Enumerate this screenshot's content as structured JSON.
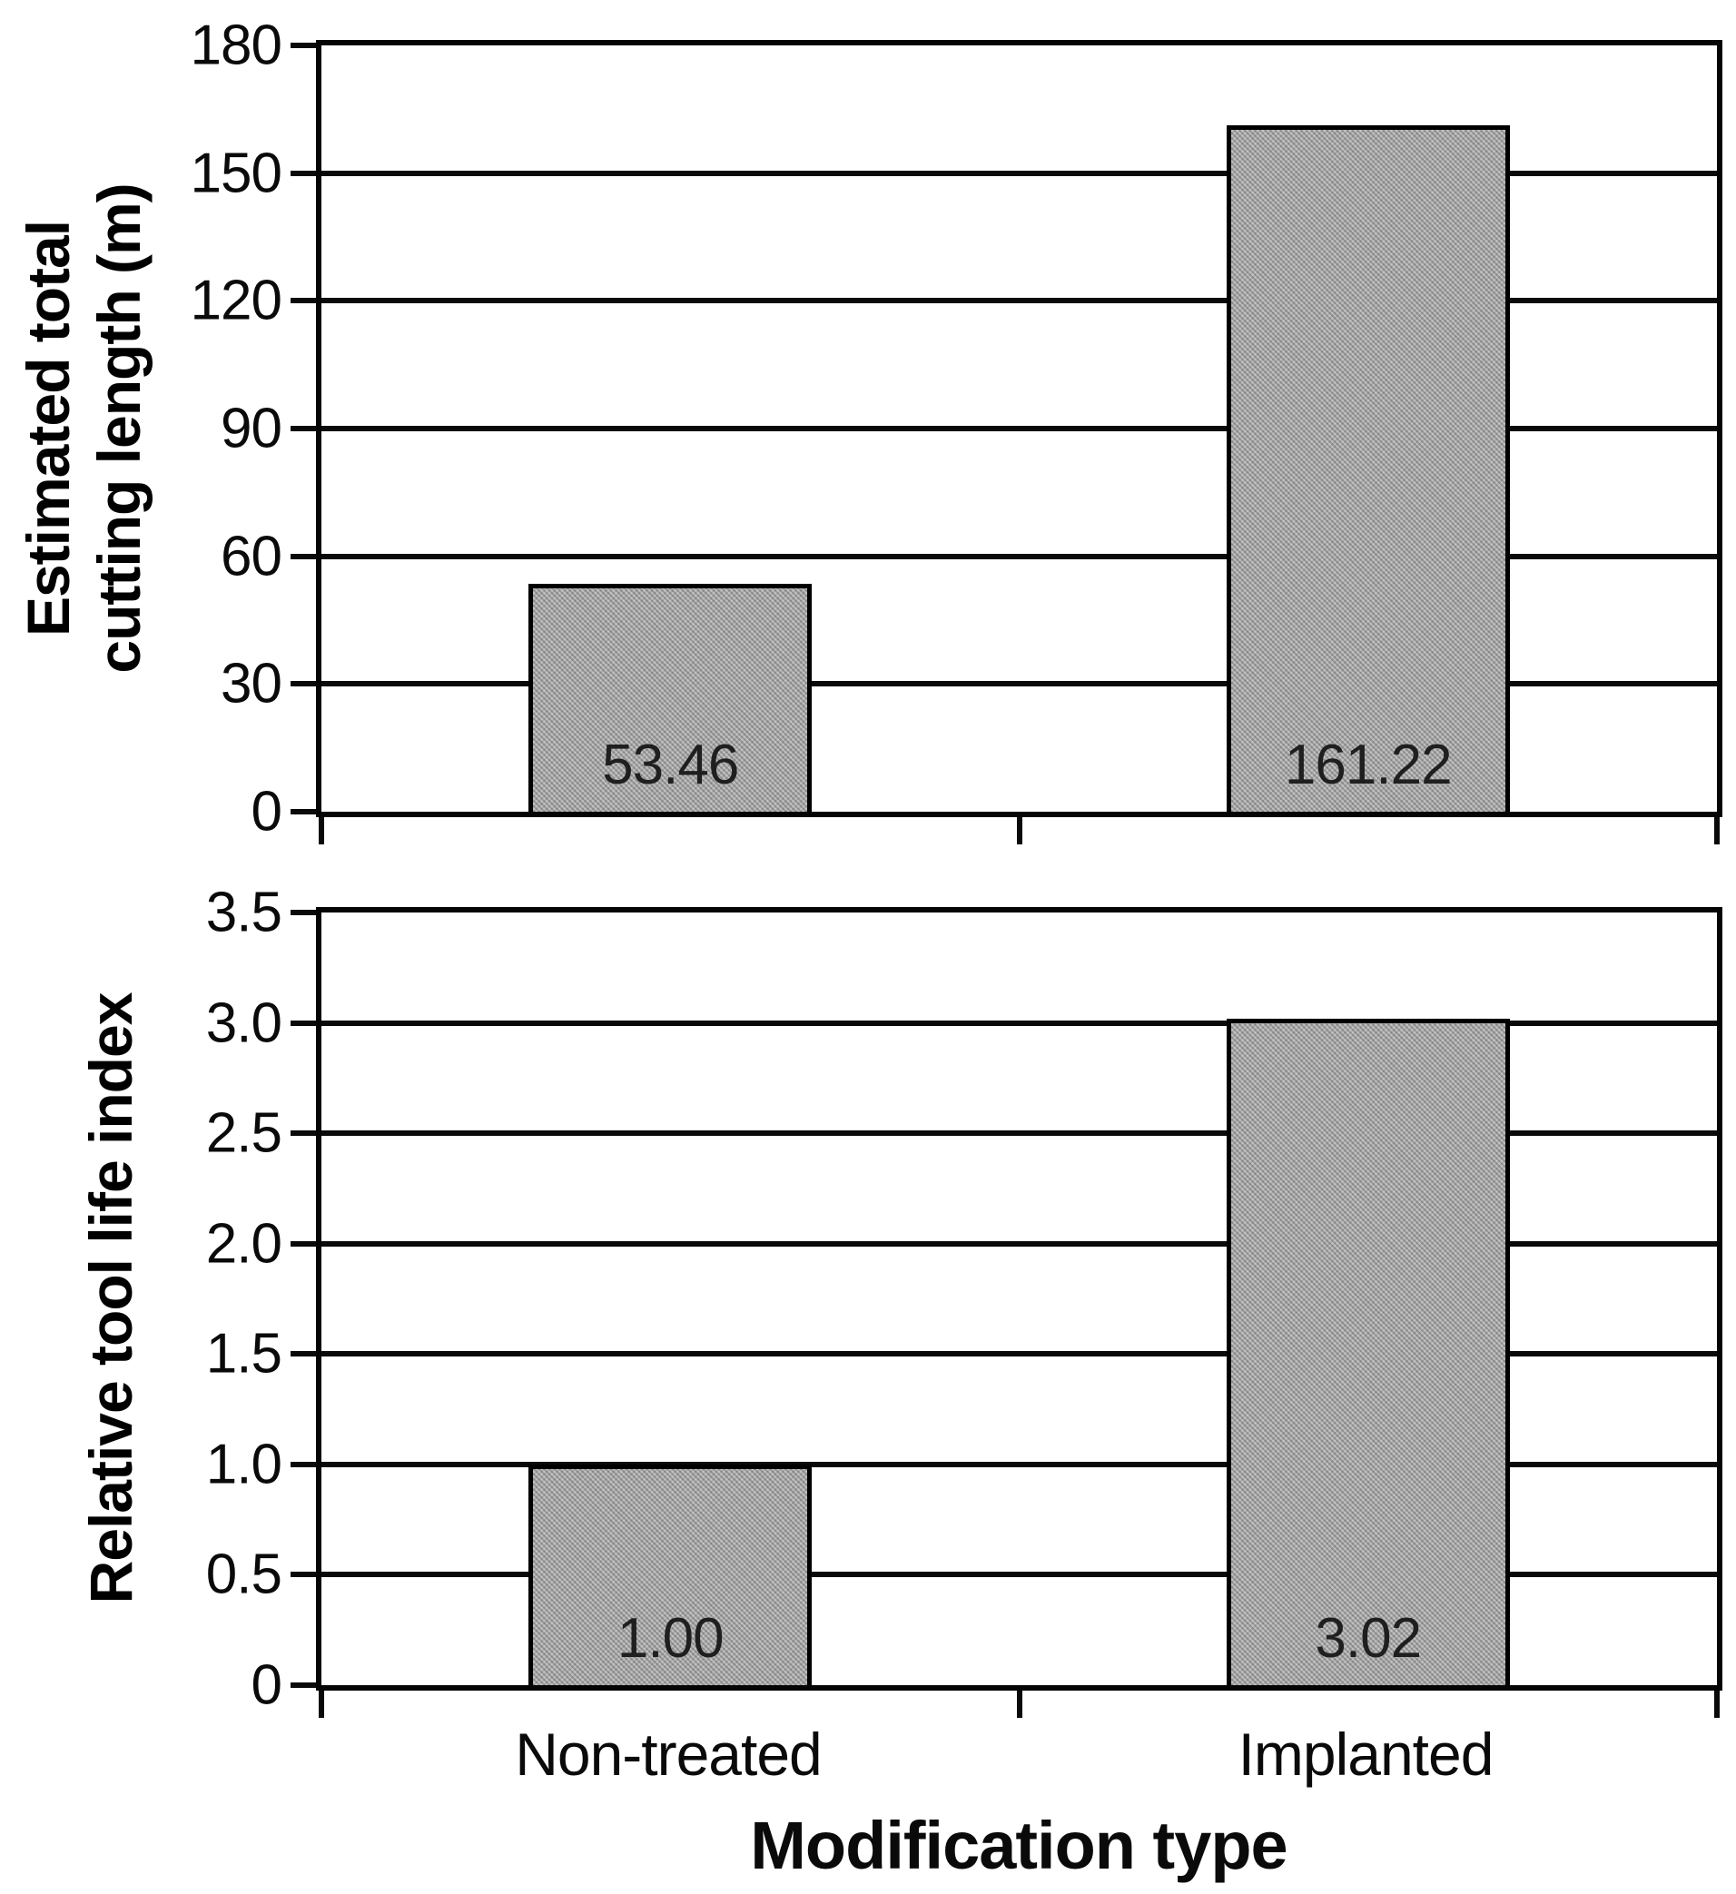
{
  "figure": {
    "x_axis_title": "Modification type",
    "categories": [
      "Non-treated",
      "Implanted"
    ],
    "background": "#ffffff",
    "line_color": "#0a0a0a",
    "bar_fill": "#b4b4b4"
  },
  "chart_data": [
    {
      "type": "bar",
      "title": "",
      "ylabel": "Estimated total cutting length (m)",
      "ylabel_lines": [
        "Estimated total",
        "cutting length (m)"
      ],
      "xlabel": "Modification type",
      "categories": [
        "Non-treated",
        "Implanted"
      ],
      "values": [
        53.46,
        161.22
      ],
      "value_labels": [
        "53.46",
        "161.22"
      ],
      "ylim": [
        0,
        180
      ],
      "ytick_values": [
        180,
        150,
        120,
        90,
        60,
        30,
        0
      ],
      "yticks": [
        "180",
        "150",
        "120",
        "90",
        "60",
        "30",
        "0"
      ],
      "grid": true,
      "legend": "none",
      "bar_color": "#b4b4b4"
    },
    {
      "type": "bar",
      "title": "",
      "ylabel": "Relative tool life index",
      "ylabel_lines": [
        "Relative tool life index"
      ],
      "xlabel": "Modification type",
      "categories": [
        "Non-treated",
        "Implanted"
      ],
      "values": [
        1.0,
        3.02
      ],
      "value_labels": [
        "1.00",
        "3.02"
      ],
      "ylim": [
        0,
        3.5
      ],
      "ytick_values": [
        3.5,
        3.0,
        2.5,
        2.0,
        1.5,
        1.0,
        0.5,
        0
      ],
      "yticks": [
        "3.5",
        "3.0",
        "2.5",
        "2.0",
        "1.5",
        "1.0",
        "0.5",
        "0"
      ],
      "grid": true,
      "legend": "none",
      "bar_color": "#b4b4b4"
    }
  ]
}
